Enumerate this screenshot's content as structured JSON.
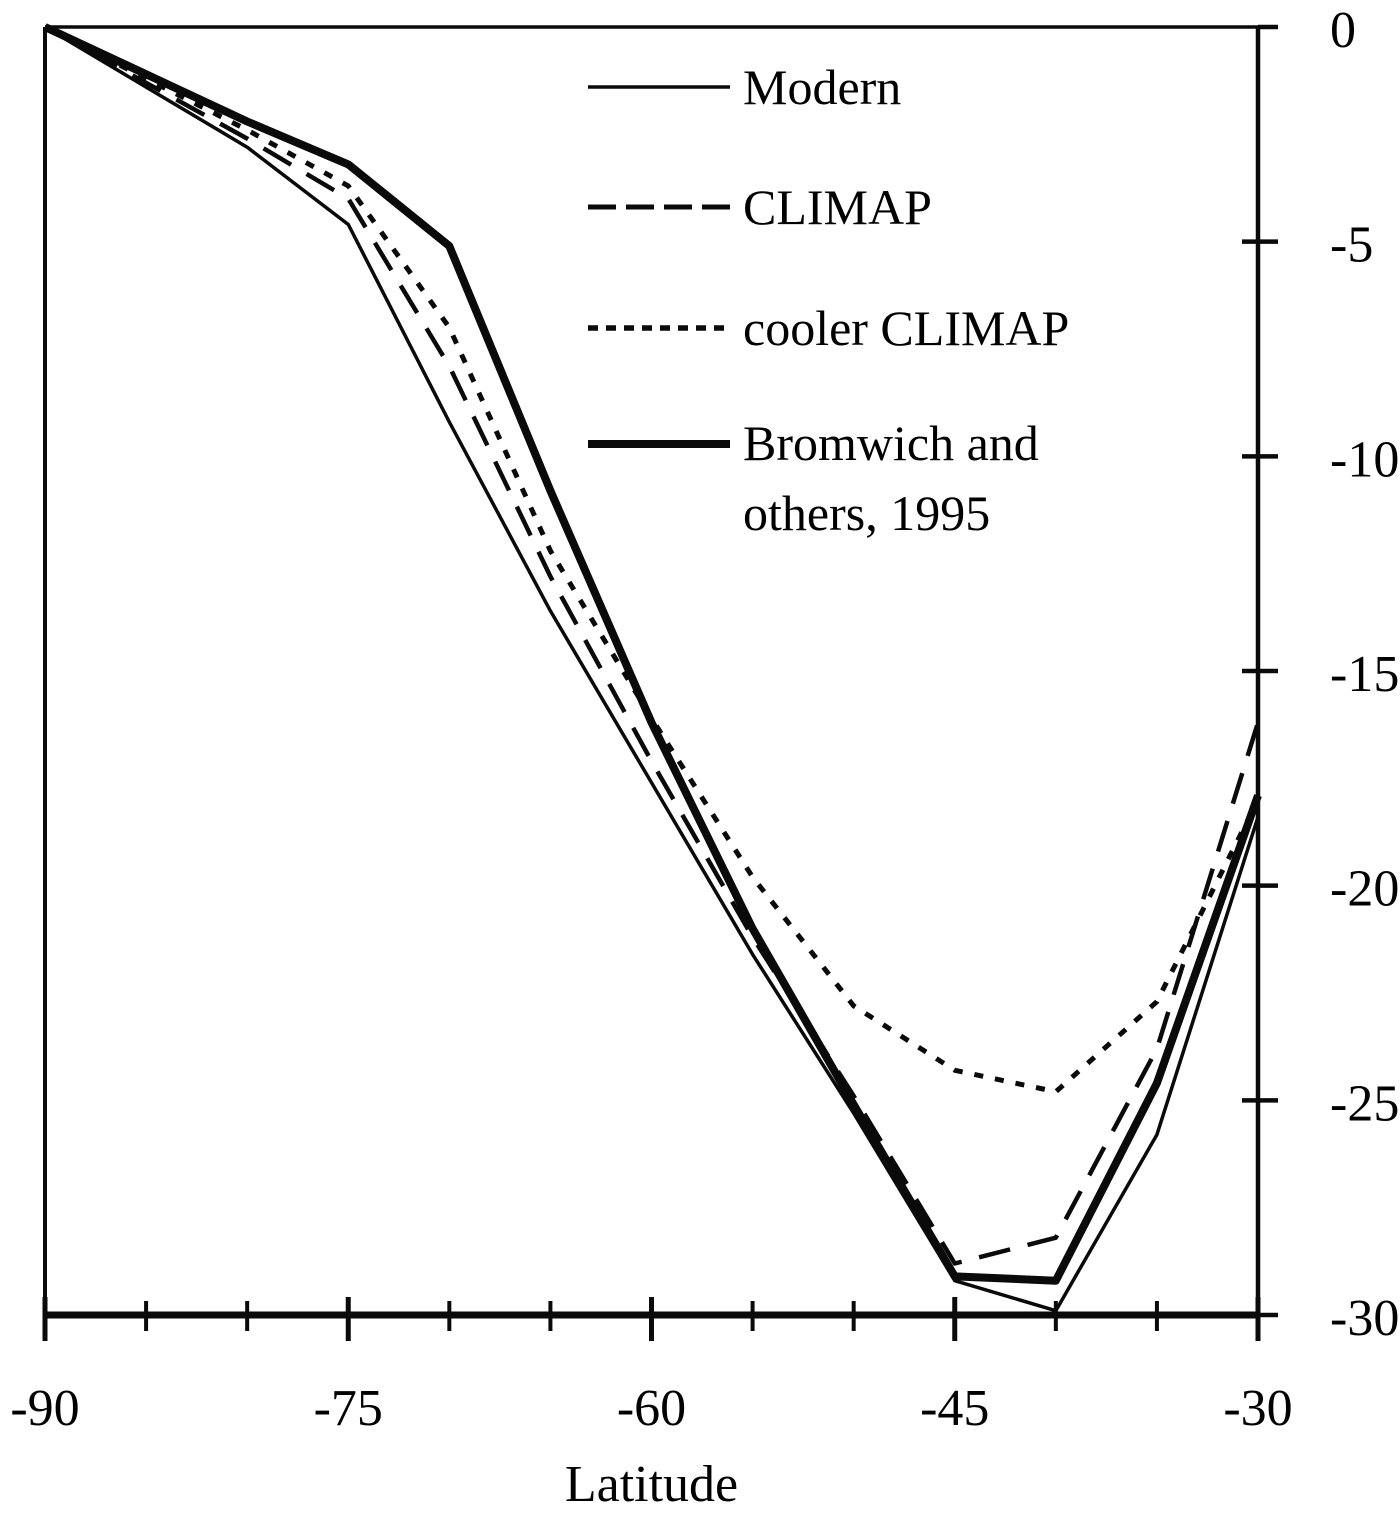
{
  "figure": {
    "xlabel": "Latitude",
    "ink_color": "#0a0a0a",
    "background": "#ffffff"
  },
  "legend": {
    "items": [
      {
        "label": "Modern",
        "style": "solid-thin"
      },
      {
        "label": "CLIMAP",
        "style": "long-dash"
      },
      {
        "label": "cooler CLIMAP",
        "style": "dotted"
      },
      {
        "label": "Bromwich and",
        "label2": "others, 1995",
        "style": "solid-thick"
      }
    ]
  },
  "chart_data": {
    "type": "line",
    "title": "",
    "xlabel": "Latitude",
    "ylabel": "",
    "xlim": [
      -90,
      -30
    ],
    "ylim": [
      -30,
      0
    ],
    "grid": false,
    "legend_position": "upper-center-inside",
    "y_axis_side": "right",
    "x_major_ticks": [
      -90,
      -75,
      -60,
      -45,
      -30
    ],
    "x_major_tick_labels": [
      "-90",
      "-75",
      "-60",
      "-45",
      "-30"
    ],
    "x_minor_tick_step": 5,
    "y_ticks": [
      0,
      -5,
      -10,
      -15,
      -20,
      -25,
      -30
    ],
    "y_tick_labels": [
      "0",
      "-5",
      "-10",
      "-15",
      "-20",
      "-25",
      "-30"
    ],
    "x": [
      -90,
      -85,
      -80,
      -75,
      -70,
      -65,
      -60,
      -55,
      -50,
      -45,
      -40,
      -35,
      -30
    ],
    "series": [
      {
        "name": "Modern",
        "style": "solid-thin",
        "values": [
          0,
          -1.4,
          -2.8,
          -4.6,
          -9.2,
          -13.6,
          -17.6,
          -21.6,
          -25.3,
          -29.2,
          -29.9,
          -25.8,
          -18.4
        ]
      },
      {
        "name": "CLIMAP",
        "style": "long-dash",
        "values": [
          0,
          -1.3,
          -2.6,
          -4.0,
          -7.9,
          -12.8,
          -17.1,
          -21.2,
          -24.9,
          -28.8,
          -28.2,
          -23.8,
          -16.2
        ]
      },
      {
        "name": "cooler CLIMAP",
        "style": "dotted",
        "values": [
          0,
          -1.2,
          -2.4,
          -3.7,
          -7.0,
          -12.2,
          -16.1,
          -19.8,
          -22.8,
          -24.3,
          -24.8,
          -22.7,
          -18.0
        ]
      },
      {
        "name": "Bromwich and others, 1995",
        "style": "solid-thick",
        "values": [
          0,
          -1.1,
          -2.2,
          -3.2,
          -5.1,
          -10.8,
          -16.2,
          -21.0,
          -25.1,
          -29.1,
          -29.2,
          -24.6,
          -17.9
        ]
      }
    ]
  }
}
